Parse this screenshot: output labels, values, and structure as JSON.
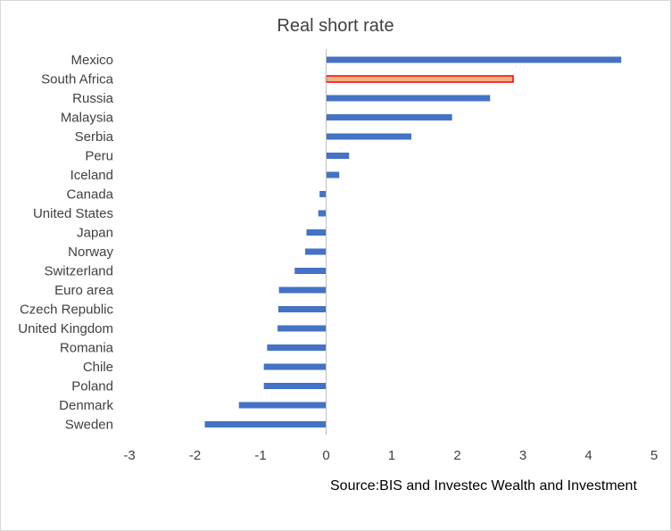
{
  "chart_data": {
    "type": "bar",
    "orientation": "horizontal",
    "title": "Real short rate",
    "categories": [
      "Mexico",
      "South Africa",
      "Russia",
      "Malaysia",
      "Serbia",
      "Peru",
      "Iceland",
      "Canada",
      "United States",
      "Japan",
      "Norway",
      "Switzerland",
      "Euro area",
      "Czech Republic",
      "United Kingdom",
      "Romania",
      "Chile",
      "Poland",
      "Denmark",
      "Sweden"
    ],
    "values": [
      4.5,
      2.85,
      2.5,
      1.92,
      1.3,
      0.35,
      0.2,
      -0.1,
      -0.12,
      -0.3,
      -0.32,
      -0.48,
      -0.72,
      -0.73,
      -0.74,
      -0.9,
      -0.95,
      -0.95,
      -1.33,
      -1.85
    ],
    "highlight_category": "South Africa",
    "xlim": [
      -3,
      5
    ],
    "xticks": [
      "-3",
      "-2",
      "-1",
      "0",
      "1",
      "2",
      "3",
      "4",
      "5"
    ],
    "xlabel": "",
    "ylabel": "",
    "grid": false,
    "colors": {
      "bar": "#4472c4",
      "highlight_fill": "#f4b183",
      "highlight_stroke": "#ff0000",
      "axis": "#bfbfbf"
    }
  },
  "source_note": "Source:BIS and Investec Wealth and Investment"
}
